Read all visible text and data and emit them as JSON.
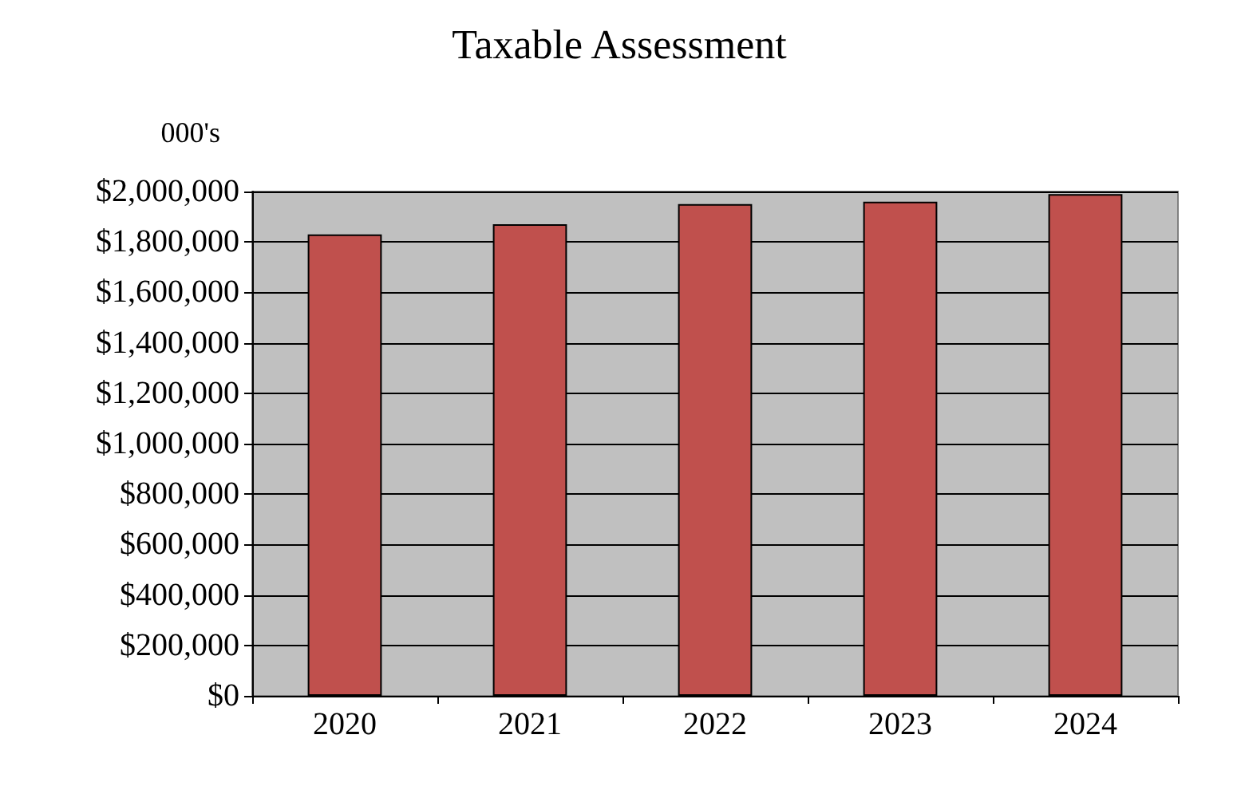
{
  "chart_data": {
    "type": "bar",
    "title": "Taxable Assessment",
    "ylabel": "000's",
    "categories": [
      "2020",
      "2021",
      "2022",
      "2023",
      "2024"
    ],
    "values": [
      1830000,
      1870000,
      1950000,
      1960000,
      1990000
    ],
    "color": "#c0504d",
    "ylim": [
      0,
      2000000
    ],
    "yticks": [
      {
        "value": 0,
        "label": "$0"
      },
      {
        "value": 200000,
        "label": "$200,000"
      },
      {
        "value": 400000,
        "label": "$400,000"
      },
      {
        "value": 600000,
        "label": "$600,000"
      },
      {
        "value": 800000,
        "label": "$800,000"
      },
      {
        "value": 1000000,
        "label": "$1,000,000"
      },
      {
        "value": 1200000,
        "label": "$1,200,000"
      },
      {
        "value": 1400000,
        "label": "$1,400,000"
      },
      {
        "value": 1600000,
        "label": "$1,600,000"
      },
      {
        "value": 1800000,
        "label": "$1,800,000"
      },
      {
        "value": 2000000,
        "label": "$2,000,000"
      }
    ],
    "grid": true
  }
}
